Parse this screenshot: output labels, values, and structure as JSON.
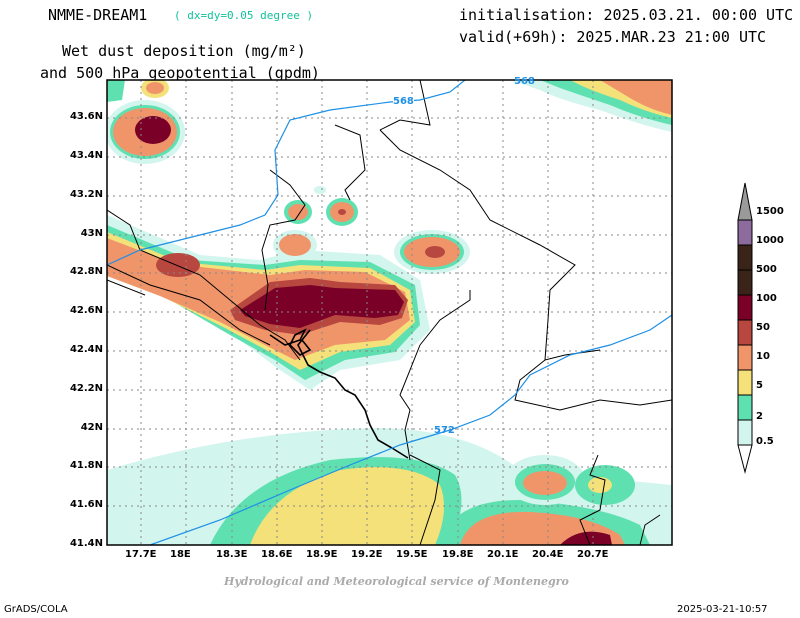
{
  "header": {
    "model": "NMME-DREAM1",
    "resolution": "( dx=dy=0.05 degree )",
    "title_line1": "Wet dust deposition (mg/m²)",
    "title_line2": "and 500 hPa geopotential (gpdm)",
    "init": "initialisation: 2025.03.21. 00:00 UTC",
    "valid": "valid(+69h): 2025.MAR.23 21:00 UTC"
  },
  "axes": {
    "lat_labels": [
      "43.6N",
      "43.4N",
      "43.2N",
      "43N",
      "42.8N",
      "42.6N",
      "42.4N",
      "42.2N",
      "42N",
      "41.8N",
      "41.6N",
      "41.4N"
    ],
    "lon_labels": [
      "17.7E",
      "18E",
      "18.3E",
      "18.6E",
      "18.9E",
      "19.2E",
      "19.5E",
      "19.8E",
      "20.1E",
      "20.4E",
      "20.7E"
    ]
  },
  "contours": [
    {
      "label": "568"
    },
    {
      "label": "568"
    },
    {
      "label": "572"
    }
  ],
  "legend": {
    "levels": [
      "0.5",
      "2",
      "5",
      "10",
      "50",
      "100",
      "500",
      "1000",
      "1500"
    ],
    "colors": [
      "#d2f5ee",
      "#5fe0b0",
      "#f5e17a",
      "#f0956a",
      "#b8473f",
      "#7a0028",
      "#3a2318",
      "#8d6b9c",
      "#9a9a9a"
    ]
  },
  "credit": "Hydrological and Meteorological service of Montenegro",
  "footer": {
    "left": "GrADS/COLA",
    "right": "2025-03-21-10:57"
  }
}
